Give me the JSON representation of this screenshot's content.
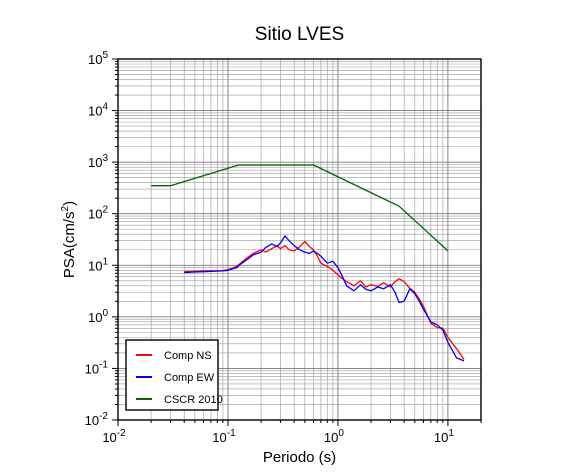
{
  "chart_data": {
    "type": "line",
    "title": "Sitio LVES",
    "xlabel": "Periodo (s)",
    "ylabel": "PSA(cm/s²)",
    "x_scale": "log",
    "y_scale": "log",
    "xlim": [
      0.01,
      20
    ],
    "ylim": [
      0.01,
      100000
    ],
    "grid": true,
    "legend_position": "bottom-left",
    "x_ticks": [
      {
        "value": 0.01,
        "base": "10",
        "exp": "-2"
      },
      {
        "value": 0.1,
        "base": "10",
        "exp": "-1"
      },
      {
        "value": 1,
        "base": "10",
        "exp": "0"
      },
      {
        "value": 10,
        "base": "10",
        "exp": "1"
      }
    ],
    "y_ticks": [
      {
        "value": 0.01,
        "base": "10",
        "exp": "-2"
      },
      {
        "value": 0.1,
        "base": "10",
        "exp": "-1"
      },
      {
        "value": 1,
        "base": "10",
        "exp": "0"
      },
      {
        "value": 10,
        "base": "10",
        "exp": "1"
      },
      {
        "value": 100,
        "base": "10",
        "exp": "2"
      },
      {
        "value": 1000,
        "base": "10",
        "exp": "3"
      },
      {
        "value": 10000,
        "base": "10",
        "exp": "4"
      },
      {
        "value": 100000,
        "base": "10",
        "exp": "5"
      }
    ],
    "series": [
      {
        "name": "Comp NS",
        "color": "#ff0000",
        "x": [
          0.04,
          0.05,
          0.06,
          0.07,
          0.08,
          0.09,
          0.1,
          0.11,
          0.12,
          0.13,
          0.15,
          0.17,
          0.2,
          0.22,
          0.25,
          0.28,
          0.3,
          0.33,
          0.36,
          0.4,
          0.45,
          0.5,
          0.55,
          0.6,
          0.65,
          0.7,
          0.8,
          0.9,
          1.0,
          1.1,
          1.2,
          1.4,
          1.6,
          1.8,
          2.0,
          2.3,
          2.6,
          3.0,
          3.3,
          3.6,
          4.0,
          4.5,
          5.0,
          5.5,
          6.0,
          7.0,
          8.0,
          9.0,
          10.0,
          12.0,
          14.0
        ],
        "y": [
          7.5,
          7.6,
          7.7,
          7.8,
          7.8,
          7.9,
          8.2,
          8.8,
          9.5,
          11,
          14,
          17,
          20,
          18,
          21,
          24,
          21,
          24,
          20,
          19,
          23,
          29,
          23,
          20,
          15,
          11,
          9.5,
          8,
          6.5,
          5.5,
          4.8,
          4,
          5,
          3.8,
          4.2,
          3.9,
          4.6,
          3.8,
          4.8,
          5.5,
          4.8,
          3.6,
          3,
          2.2,
          1.6,
          0.75,
          0.62,
          0.6,
          0.4,
          0.24,
          0.15
        ]
      },
      {
        "name": "Comp EW",
        "color": "#0000ff",
        "x": [
          0.04,
          0.05,
          0.06,
          0.07,
          0.08,
          0.09,
          0.1,
          0.11,
          0.12,
          0.13,
          0.15,
          0.17,
          0.2,
          0.22,
          0.25,
          0.28,
          0.3,
          0.33,
          0.36,
          0.4,
          0.45,
          0.5,
          0.55,
          0.6,
          0.65,
          0.7,
          0.8,
          0.9,
          1.0,
          1.1,
          1.2,
          1.4,
          1.6,
          1.8,
          2.0,
          2.3,
          2.6,
          3.0,
          3.3,
          3.6,
          4.0,
          4.5,
          5.0,
          5.5,
          6.0,
          7.0,
          8.0,
          9.0,
          10.0,
          12.0,
          14.0
        ],
        "y": [
          7.2,
          7.4,
          7.5,
          7.6,
          7.7,
          7.8,
          8.0,
          8.5,
          9.0,
          10.5,
          13,
          16,
          18,
          22,
          26,
          23,
          27,
          37,
          30,
          24,
          20,
          18,
          17,
          19,
          17,
          15,
          11,
          12,
          9,
          6,
          4,
          3.2,
          4.2,
          3.4,
          3.2,
          3.8,
          3.5,
          4.2,
          3.0,
          1.9,
          2.0,
          3.5,
          2.8,
          2.0,
          1.4,
          0.8,
          0.7,
          0.55,
          0.32,
          0.16,
          0.14
        ]
      },
      {
        "name": "CSCR 2010",
        "color": "#006400",
        "x": [
          0.02,
          0.03,
          0.125,
          0.6,
          3.6,
          10
        ],
        "y": [
          350,
          350,
          880,
          880,
          140,
          19
        ]
      }
    ]
  }
}
